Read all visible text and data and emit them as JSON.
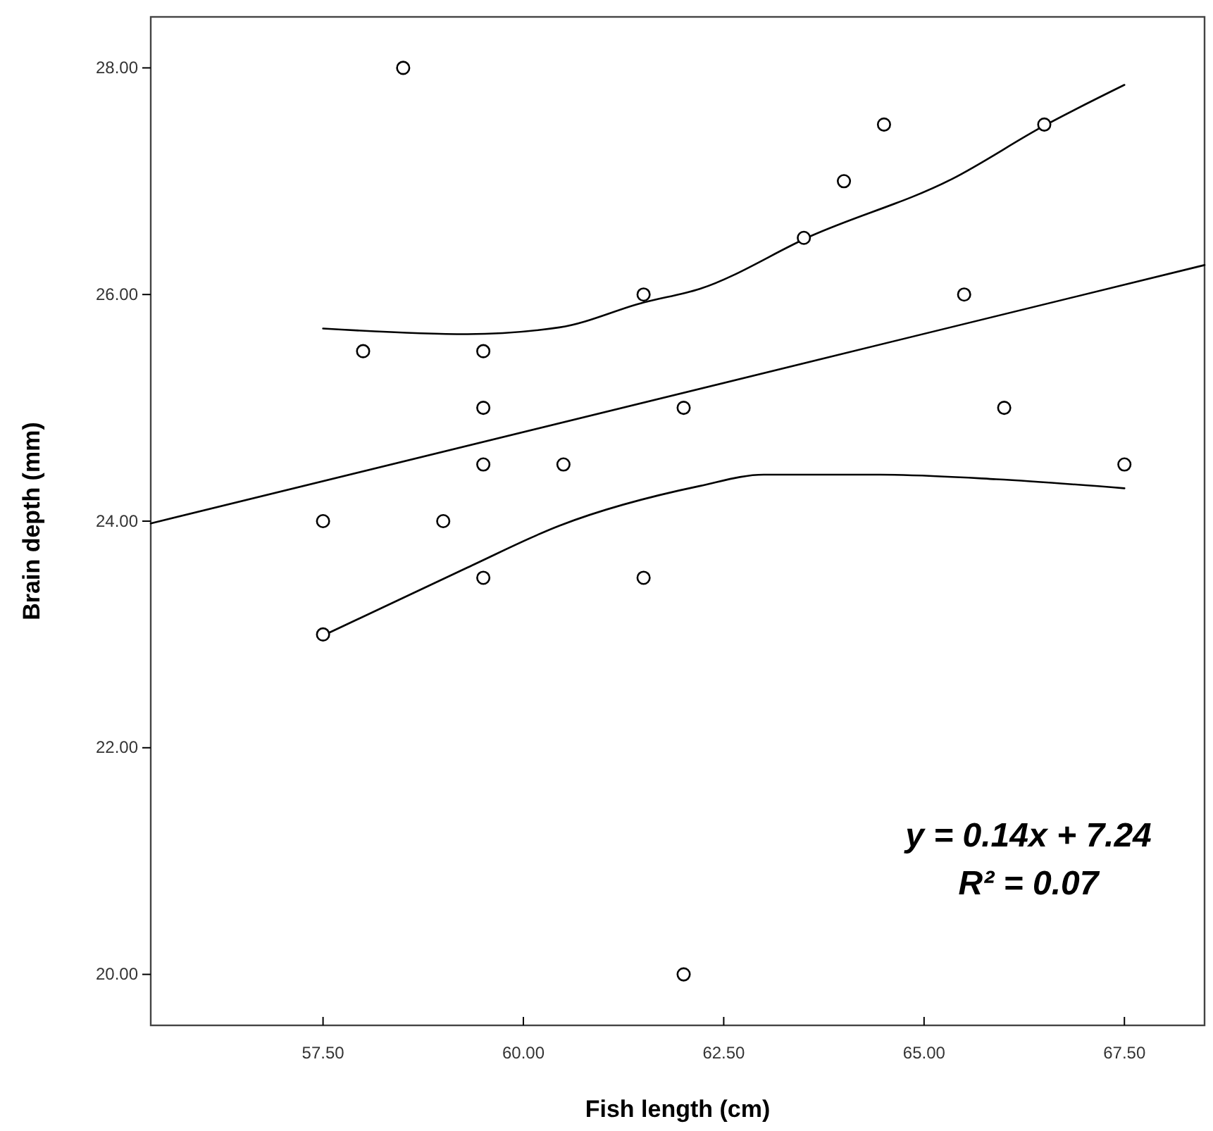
{
  "chart_data": {
    "type": "scatter",
    "xlabel": "Fish length (cm)",
    "ylabel": "Brain depth (mm)",
    "xlim": [
      55.35,
      68.5
    ],
    "ylim": [
      19.55,
      28.45
    ],
    "xticks": [
      {
        "value": 57.5,
        "label": "57.50"
      },
      {
        "value": 60,
        "label": "60.00"
      },
      {
        "value": 62.5,
        "label": "62.50"
      },
      {
        "value": 65,
        "label": "65.00"
      },
      {
        "value": 67.5,
        "label": "67.50"
      }
    ],
    "yticks": [
      {
        "value": 20,
        "label": "20.00"
      },
      {
        "value": 22,
        "label": "22.00"
      },
      {
        "value": 24,
        "label": "24.00"
      },
      {
        "value": 26,
        "label": "26.00"
      },
      {
        "value": 28,
        "label": "28.00"
      }
    ],
    "grid": false,
    "annotations": [
      "y = 0.14x + 7.24",
      "R² = 0.07"
    ],
    "series": [
      {
        "color": "#000000",
        "marker": "circle",
        "x": [
          58.5,
          57.5,
          57.5,
          58,
          59,
          59.5,
          59.5,
          59.5,
          59.5,
          60.5,
          61.5,
          61.5,
          62,
          62,
          63.5,
          64,
          64.5,
          65.5,
          66,
          66.5,
          67.5
        ],
        "values": [
          28,
          24,
          23,
          25.5,
          24,
          25.5,
          25,
          24.5,
          23.5,
          24.5,
          26,
          23.5,
          25,
          20,
          26.5,
          27,
          27.5,
          26,
          25,
          27.5,
          24.5
        ]
      },
      {
        "type": "line",
        "color": "#000000",
        "marker": "none",
        "line_style": "solid",
        "x": [
          55.35,
          68.5
        ],
        "values": [
          23.98,
          26.26
        ]
      },
      {
        "type": "line",
        "color": "#000000",
        "marker": "none",
        "line_style": "solid",
        "x": [
          57.5,
          59.3,
          60.45,
          61.5,
          62.2,
          63.6,
          65.35,
          66.5,
          67.5
        ],
        "values": [
          25.7,
          25.65,
          25.71,
          25.93,
          26.05,
          26.52,
          27.02,
          27.49,
          27.85
        ]
      },
      {
        "type": "line",
        "color": "#000000",
        "marker": "none",
        "line_style": "solid",
        "x": [
          57.5,
          59.3,
          60.45,
          62.2,
          63,
          64.45,
          65.9,
          67.5
        ],
        "values": [
          22.99,
          23.59,
          23.96,
          24.31,
          24.41,
          24.41,
          24.37,
          24.29
        ]
      }
    ]
  }
}
